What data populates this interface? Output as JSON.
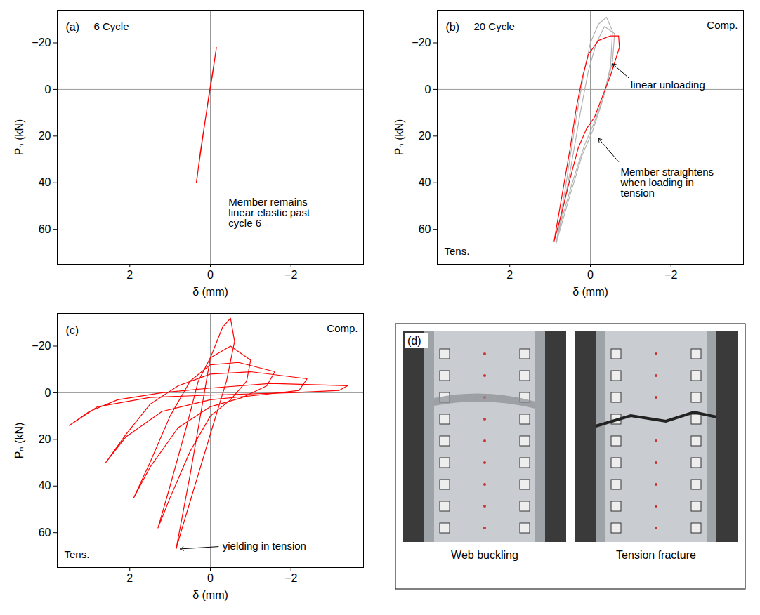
{
  "chart_data": [
    {
      "type": "line",
      "panel_label": "(a)",
      "title": "6 Cycle",
      "x_label": "δ (mm)",
      "y_label": "Pₙ (kN)",
      "xlim": [
        3.8,
        -3.8
      ],
      "xticks": [
        2,
        0,
        -2
      ],
      "ylim": [
        75,
        -34
      ],
      "yticks": [
        -20,
        0,
        20,
        40,
        60
      ],
      "grid": false,
      "rules": {
        "x": [
          0
        ],
        "y": [
          0
        ]
      },
      "series": [
        {
          "color": "#ff0000",
          "x": [
            0.35,
            0.2,
            0.05,
            -0.08,
            -0.15,
            -0.05,
            0.1,
            0.25,
            0.33
          ],
          "values": [
            40,
            22,
            4,
            -10,
            -18,
            -6,
            10,
            27,
            38
          ]
        }
      ],
      "annotations": [
        {
          "text": "Member remains linear elastic past cycle 6",
          "x": -0.45,
          "y": 53
        }
      ]
    },
    {
      "type": "line",
      "panel_label": "(b)",
      "title": "20 Cycle",
      "compression_label": "Comp.",
      "tension_label": "Tens.",
      "x_label": "δ (mm)",
      "y_label": "Pₙ (kN)",
      "xlim": [
        3.8,
        -3.8
      ],
      "xticks": [
        2,
        0,
        -2
      ],
      "ylim": [
        75,
        -34
      ],
      "yticks": [
        -20,
        0,
        20,
        40,
        60
      ],
      "grid": false,
      "rules": {
        "x": [
          0
        ],
        "y": [
          0
        ]
      },
      "series": [
        {
          "color": "#b3b3b3",
          "x": [
            0.85,
            0.6,
            0.35,
            0.15,
            0,
            -0.2,
            -0.4,
            -0.55,
            -0.5,
            -0.3,
            -0.05,
            0.2,
            0.5,
            0.75,
            0.85
          ],
          "values": [
            66,
            40,
            12,
            -8,
            -20,
            -28,
            -31,
            -25,
            -10,
            5,
            18,
            28,
            45,
            60,
            66
          ]
        },
        {
          "color": "#b3b3b3",
          "x": [
            0.8,
            0.5,
            0.25,
            0.05,
            -0.15,
            -0.35,
            -0.6,
            -0.55,
            -0.35,
            -0.1,
            0.15,
            0.45,
            0.7,
            0.8
          ],
          "values": [
            62,
            35,
            10,
            -8,
            -20,
            -27,
            -24,
            -12,
            2,
            14,
            24,
            40,
            55,
            62
          ]
        },
        {
          "color": "#ff0000",
          "x": [
            0.9,
            0.7,
            0.5,
            0.35,
            0.2,
            0.05,
            -0.2,
            -0.5,
            -0.7,
            -0.72,
            -0.5,
            -0.3,
            -0.1,
            0.1,
            0.3,
            0.5,
            0.7,
            0.85,
            0.9
          ],
          "values": [
            65,
            45,
            25,
            8,
            -5,
            -15,
            -21,
            -23,
            -23,
            -18,
            -6,
            3,
            12,
            17,
            25,
            38,
            52,
            62,
            65
          ]
        }
      ],
      "annotations": [
        {
          "text": "linear unloading",
          "x": -1.0,
          "y": -2,
          "arrow_from": [
            -0.95,
            -5
          ],
          "arrow_to": [
            -0.55,
            -11
          ]
        },
        {
          "text": "Member straightens when loading in tension",
          "x": -0.75,
          "y": 40,
          "arrow_from": [
            -0.7,
            31
          ],
          "arrow_to": [
            -0.2,
            21
          ]
        }
      ]
    },
    {
      "type": "line",
      "panel_label": "(c)",
      "compression_label": "Comp.",
      "tension_label": "Tens.",
      "x_label": "δ (mm)",
      "y_label": "Pₙ (kN)",
      "xlim": [
        3.8,
        -3.8
      ],
      "xticks": [
        2,
        0,
        -2
      ],
      "ylim": [
        75,
        -34
      ],
      "yticks": [
        -20,
        0,
        20,
        40,
        60
      ],
      "grid": false,
      "rules": {
        "x": [
          0
        ],
        "y": [
          0
        ]
      },
      "series": [
        {
          "color": "#ff0000",
          "x": [
            0.85,
            0.5,
            0.2,
            0,
            -0.3,
            -0.5,
            -0.6,
            -0.4,
            -0.1,
            0.3,
            0.7,
            0.85
          ],
          "values": [
            67,
            35,
            5,
            -15,
            -28,
            -32,
            -22,
            -5,
            12,
            35,
            58,
            67
          ]
        },
        {
          "color": "#ff0000",
          "x": [
            1.3,
            1.0,
            0.6,
            0.3,
            0,
            -0.5,
            -1.0,
            -0.9,
            -0.5,
            0,
            0.5,
            1.0,
            1.3
          ],
          "values": [
            58,
            40,
            15,
            -5,
            -15,
            -20,
            -14,
            -5,
            3,
            10,
            25,
            45,
            58
          ]
        },
        {
          "color": "#ff0000",
          "x": [
            1.9,
            1.5,
            1.0,
            0.5,
            0,
            -0.7,
            -1.6,
            -1.4,
            -0.8,
            0,
            0.8,
            1.5,
            1.9
          ],
          "values": [
            45,
            30,
            10,
            -5,
            -12,
            -13,
            -9,
            -3,
            2,
            6,
            15,
            32,
            45
          ]
        },
        {
          "color": "#ff0000",
          "x": [
            2.6,
            2.1,
            1.5,
            0.8,
            0,
            -1,
            -2.4,
            -2.2,
            -1.2,
            0,
            1.2,
            2.1,
            2.6
          ],
          "values": [
            30,
            18,
            5,
            -3,
            -8,
            -9,
            -6,
            -1,
            1,
            3,
            8,
            19,
            30
          ]
        },
        {
          "color": "#ff0000",
          "x": [
            3.5,
            3,
            2.3,
            1.2,
            0,
            -1.5,
            -3.4,
            -3.2,
            -2,
            0,
            1.5,
            2.8,
            3.5
          ],
          "values": [
            14,
            8,
            3,
            0,
            -2,
            -4,
            -3,
            -1,
            0,
            1,
            2,
            6,
            14
          ]
        }
      ],
      "annotations": [
        {
          "text": "yielding in tension",
          "x": -0.3,
          "y": 66,
          "arrow_from": [
            -0.2,
            66
          ],
          "arrow_to": [
            0.75,
            67
          ]
        }
      ]
    }
  ],
  "photo_panel": {
    "panel_label": "(d)",
    "photos": [
      {
        "caption": "Web buckling"
      },
      {
        "caption": "Tension fracture"
      }
    ]
  }
}
